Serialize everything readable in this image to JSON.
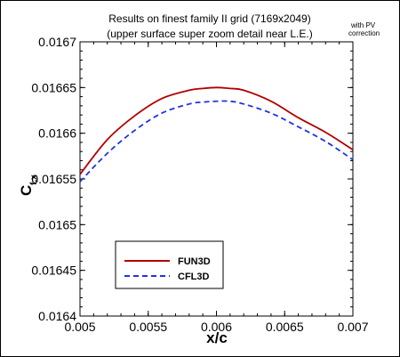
{
  "chart_data": {
    "type": "line",
    "title": "Results on finest family II grid (7169x2049)",
    "subtitle": "(upper surface super zoom detail near L.E.)",
    "annotation": [
      "with PV",
      "correction"
    ],
    "xlabel": "x/c",
    "ylabel_main": "C",
    "ylabel_sub": "f,x",
    "xlim": [
      0.005,
      0.007
    ],
    "ylim": [
      0.0164,
      0.0167
    ],
    "xticks": [
      "0.005",
      "0.0055",
      "0.006",
      "0.0065",
      "0.007"
    ],
    "yticks": [
      "0.0164",
      "0.01645",
      "0.0165",
      "0.01655",
      "0.0166",
      "0.01665",
      "0.0167"
    ],
    "legend_position": "bottom-left",
    "grid": false,
    "series": [
      {
        "name": "FUN3D",
        "color": "#b00000",
        "style": "solid",
        "x": [
          0.005,
          0.0052,
          0.0054,
          0.0056,
          0.0058,
          0.0059,
          0.006,
          0.0061,
          0.0062,
          0.0064,
          0.0066,
          0.0068,
          0.007
        ],
        "y": [
          0.016555,
          0.016593,
          0.016619,
          0.016638,
          0.016647,
          0.016649,
          0.01665,
          0.016649,
          0.016647,
          0.016635,
          0.016617,
          0.016601,
          0.016582
        ]
      },
      {
        "name": "CFL3D",
        "color": "#2233dd",
        "style": "dashed",
        "x": [
          0.005,
          0.0052,
          0.0054,
          0.0056,
          0.0058,
          0.0059,
          0.006,
          0.0061,
          0.0062,
          0.0064,
          0.0066,
          0.0068,
          0.007
        ],
        "y": [
          0.016547,
          0.016578,
          0.016603,
          0.016622,
          0.016632,
          0.016634,
          0.016635,
          0.016635,
          0.016632,
          0.016622,
          0.016607,
          0.016591,
          0.016571
        ]
      }
    ]
  }
}
